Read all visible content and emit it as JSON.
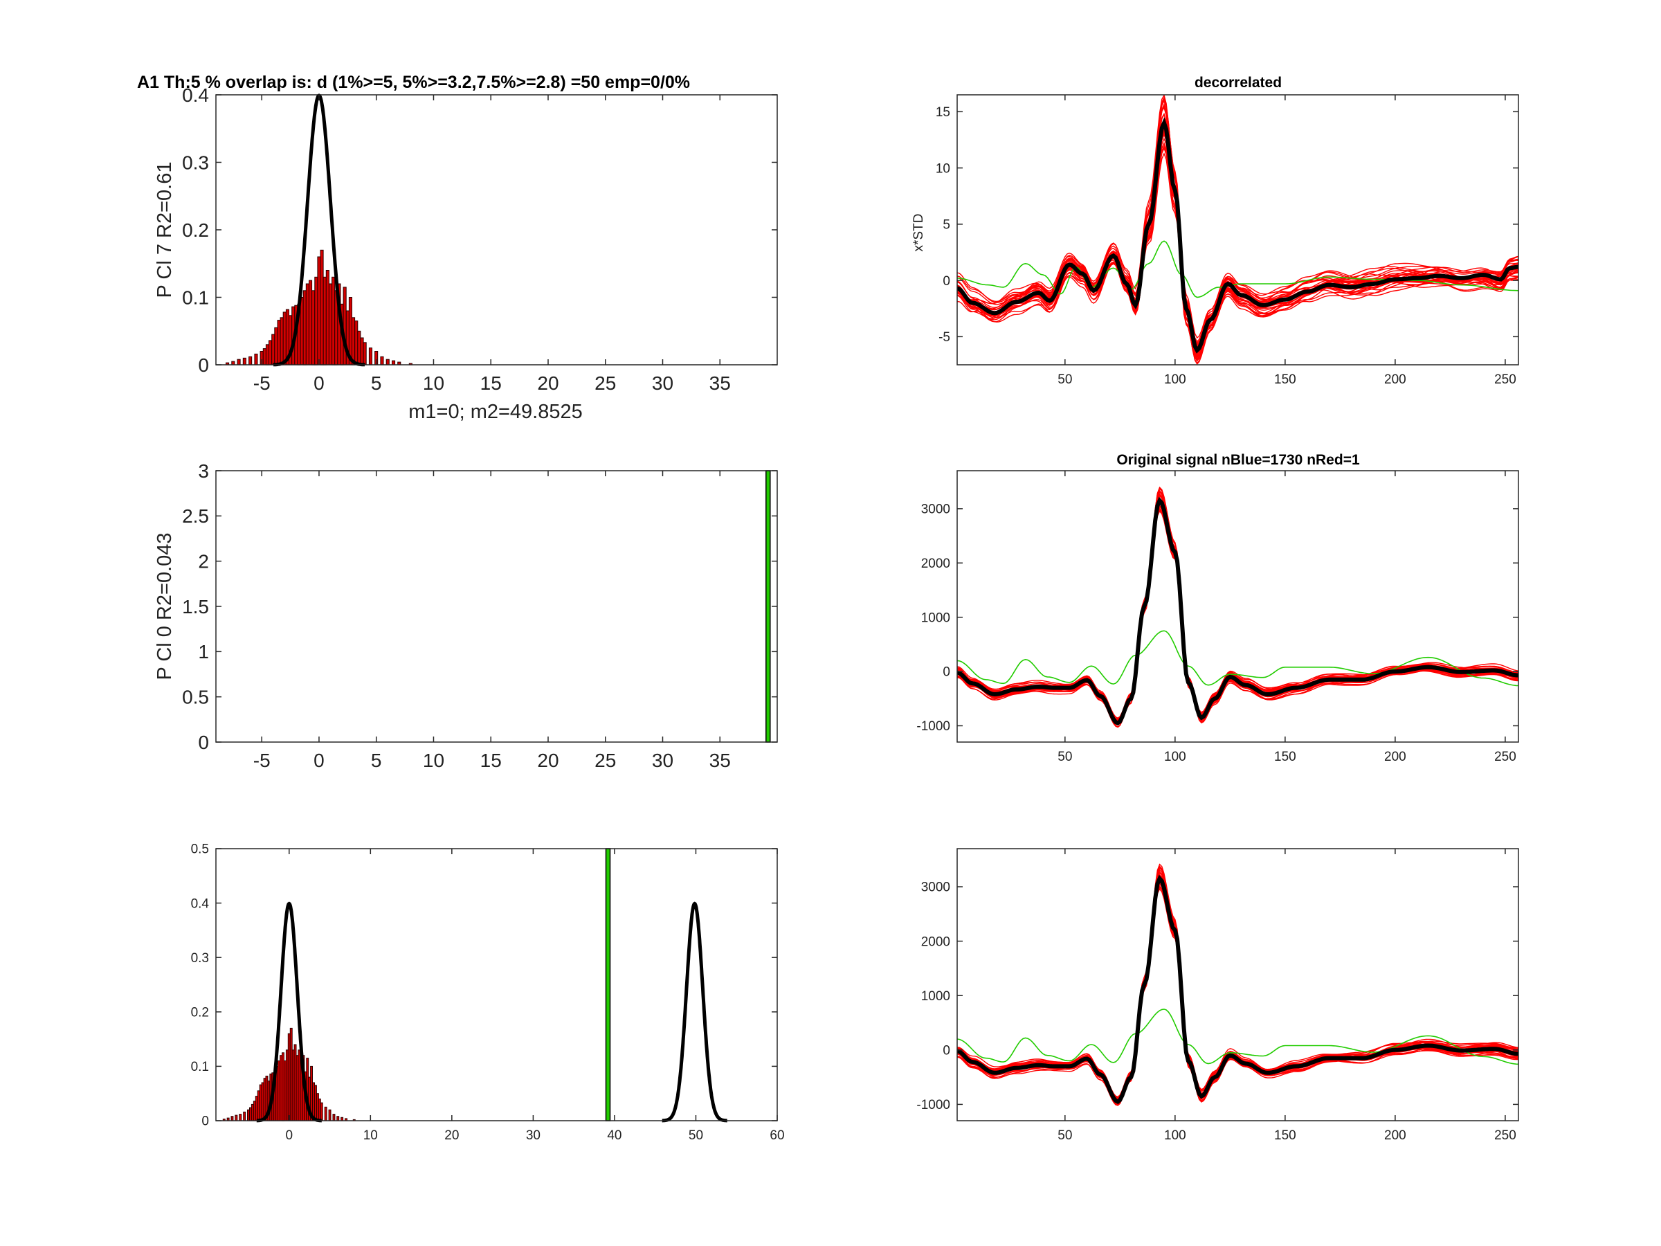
{
  "figure_title": "A1 Th:5 % overlap is: d (1%>=5, 5%>=3.2,7.5%>=2.8) =50 emp=0/0%",
  "colors": {
    "hist_fill": "#d40000",
    "hist_edge": "#2a0000",
    "curve": "#000000",
    "green": "#22cc00",
    "red_traces": "#ff0000",
    "mean_trace": "#000000"
  },
  "chart_data": [
    {
      "id": "hist-top",
      "type": "bar",
      "ylabel": "P Cl 7 R2=0.61",
      "xlabel": "m1=0; m2=49.8525",
      "xlim": [
        -9,
        40
      ],
      "ylim": [
        0,
        0.4
      ],
      "xticks": [
        -5,
        0,
        5,
        10,
        15,
        20,
        25,
        30,
        35
      ],
      "yticks": [
        0,
        0.1,
        0.2,
        0.3,
        0.4
      ],
      "gaussian": {
        "mu": 0,
        "sigma": 1
      },
      "hist_x": [
        -8,
        -7.5,
        -7,
        -6.5,
        -6,
        -5.5,
        -5,
        -4.75,
        -4.5,
        -4.25,
        -4,
        -3.75,
        -3.5,
        -3.25,
        -3,
        -2.75,
        -2.5,
        -2.25,
        -2,
        -1.75,
        -1.5,
        -1.25,
        -1,
        -0.75,
        -0.5,
        -0.25,
        0,
        0.25,
        0.5,
        0.75,
        1,
        1.25,
        1.5,
        1.75,
        2,
        2.25,
        2.5,
        2.75,
        3,
        3.25,
        3.5,
        3.75,
        4,
        4.5,
        5,
        5.5,
        6,
        6.5,
        7,
        8
      ],
      "hist_y": [
        0.003,
        0.005,
        0.008,
        0.01,
        0.012,
        0.016,
        0.02,
        0.024,
        0.03,
        0.036,
        0.045,
        0.055,
        0.066,
        0.07,
        0.078,
        0.082,
        0.073,
        0.086,
        0.088,
        0.09,
        0.1,
        0.11,
        0.12,
        0.125,
        0.11,
        0.13,
        0.16,
        0.17,
        0.13,
        0.14,
        0.12,
        0.13,
        0.11,
        0.12,
        0.09,
        0.115,
        0.08,
        0.1,
        0.07,
        0.065,
        0.05,
        0.04,
        0.033,
        0.025,
        0.02,
        0.012,
        0.008,
        0.006,
        0.004,
        0.002
      ]
    },
    {
      "id": "hist-middle",
      "type": "bar",
      "ylabel": "P Cl 0 R2=0.043",
      "xlim": [
        -9,
        40
      ],
      "ylim": [
        0,
        3
      ],
      "xticks": [
        -5,
        0,
        5,
        10,
        15,
        20,
        25,
        30,
        35
      ],
      "yticks": [
        0,
        0.5,
        1,
        1.5,
        2,
        2.5,
        3
      ],
      "green_bar_x": 39.2
    },
    {
      "id": "hist-bottom",
      "type": "bar",
      "xlim": [
        -9,
        60
      ],
      "ylim": [
        0,
        0.5
      ],
      "xticks": [
        0,
        10,
        20,
        30,
        40,
        50,
        60
      ],
      "yticks": [
        0,
        0.1,
        0.2,
        0.3,
        0.4,
        0.5
      ],
      "gaussians": [
        {
          "mu": 0,
          "sigma": 1
        },
        {
          "mu": 49.85,
          "sigma": 1
        }
      ],
      "green_bar_x": 39.2
    },
    {
      "id": "trace-decorrelated",
      "type": "line",
      "title": "decorrelated",
      "ylabel": "x*STD",
      "xlim": [
        1,
        256
      ],
      "ylim": [
        -7.5,
        16.5
      ],
      "xticks": [
        50,
        100,
        150,
        200,
        250
      ],
      "yticks": [
        -5,
        0,
        5,
        10,
        15
      ],
      "mean_knots": [
        [
          1,
          -0.7
        ],
        [
          8,
          -2
        ],
        [
          18,
          -2.9
        ],
        [
          28,
          -1.9
        ],
        [
          38,
          -1.1
        ],
        [
          43,
          -1.8
        ],
        [
          52,
          1.4
        ],
        [
          58,
          0.6
        ],
        [
          63,
          -0.9
        ],
        [
          72,
          2.2
        ],
        [
          78,
          -0.3
        ],
        [
          82,
          -2.2
        ],
        [
          88,
          5
        ],
        [
          95,
          14
        ],
        [
          100,
          8
        ],
        [
          105,
          -2.5
        ],
        [
          110,
          -6.2
        ],
        [
          116,
          -3.5
        ],
        [
          124,
          -0.3
        ],
        [
          130,
          -1.3
        ],
        [
          140,
          -2.2
        ],
        [
          150,
          -1.7
        ],
        [
          160,
          -1
        ],
        [
          170,
          -0.4
        ],
        [
          180,
          -0.6
        ],
        [
          190,
          -0.3
        ],
        [
          200,
          0.1
        ],
        [
          210,
          0.2
        ],
        [
          220,
          0.4
        ],
        [
          230,
          0.2
        ],
        [
          240,
          0.5
        ],
        [
          248,
          0.1
        ],
        [
          252,
          1.1
        ],
        [
          256,
          1.2
        ]
      ],
      "green_knots": [
        [
          1,
          0.2
        ],
        [
          15,
          -0.4
        ],
        [
          22,
          -0.6
        ],
        [
          32,
          1.5
        ],
        [
          40,
          0.5
        ],
        [
          48,
          -1.2
        ],
        [
          55,
          1.2
        ],
        [
          62,
          -0.6
        ],
        [
          72,
          1.1
        ],
        [
          80,
          -0.8
        ],
        [
          88,
          1.5
        ],
        [
          95,
          3.5
        ],
        [
          103,
          0.5
        ],
        [
          110,
          -1.5
        ],
        [
          120,
          -0.6
        ],
        [
          130,
          -0.3
        ],
        [
          150,
          -0.3
        ],
        [
          170,
          0.3
        ],
        [
          190,
          0.1
        ],
        [
          210,
          0
        ],
        [
          230,
          -0.4
        ],
        [
          256,
          -0.9
        ]
      ],
      "spread": [
        3.2,
        1.8
      ]
    },
    {
      "id": "trace-original",
      "type": "line",
      "title": "Original signal nBlue=1730 nRed=1",
      "xlim": [
        1,
        256
      ],
      "ylim": [
        -1300,
        3700
      ],
      "xticks": [
        50,
        100,
        150,
        200,
        250
      ],
      "yticks": [
        -1000,
        0,
        1000,
        2000,
        3000
      ],
      "mean_knots": [
        [
          1,
          -20
        ],
        [
          8,
          -220
        ],
        [
          18,
          -420
        ],
        [
          28,
          -330
        ],
        [
          38,
          -280
        ],
        [
          45,
          -300
        ],
        [
          52,
          -300
        ],
        [
          60,
          -160
        ],
        [
          66,
          -450
        ],
        [
          74,
          -950
        ],
        [
          80,
          -500
        ],
        [
          86,
          1200
        ],
        [
          93,
          3150
        ],
        [
          100,
          2200
        ],
        [
          106,
          -200
        ],
        [
          112,
          -850
        ],
        [
          118,
          -500
        ],
        [
          125,
          -100
        ],
        [
          132,
          -250
        ],
        [
          142,
          -420
        ],
        [
          155,
          -300
        ],
        [
          170,
          -150
        ],
        [
          185,
          -150
        ],
        [
          200,
          0
        ],
        [
          215,
          80
        ],
        [
          230,
          -10
        ],
        [
          245,
          20
        ],
        [
          256,
          -70
        ]
      ],
      "green_knots": [
        [
          1,
          200
        ],
        [
          14,
          -150
        ],
        [
          22,
          -220
        ],
        [
          32,
          220
        ],
        [
          42,
          -100
        ],
        [
          52,
          -200
        ],
        [
          62,
          100
        ],
        [
          72,
          -230
        ],
        [
          82,
          300
        ],
        [
          95,
          750
        ],
        [
          106,
          100
        ],
        [
          115,
          -250
        ],
        [
          125,
          -50
        ],
        [
          140,
          -110
        ],
        [
          150,
          80
        ],
        [
          170,
          80
        ],
        [
          190,
          -40
        ],
        [
          215,
          260
        ],
        [
          240,
          -120
        ],
        [
          256,
          -260
        ]
      ],
      "spread": [
        320,
        160
      ]
    },
    {
      "id": "trace-bottom",
      "type": "line",
      "xlim": [
        1,
        256
      ],
      "ylim": [
        -1300,
        3700
      ],
      "xticks": [
        50,
        100,
        150,
        200,
        250
      ],
      "yticks": [
        -1000,
        0,
        1000,
        2000,
        3000
      ],
      "mean_knots": [
        [
          1,
          -20
        ],
        [
          8,
          -220
        ],
        [
          18,
          -420
        ],
        [
          28,
          -330
        ],
        [
          38,
          -280
        ],
        [
          45,
          -300
        ],
        [
          52,
          -300
        ],
        [
          60,
          -160
        ],
        [
          66,
          -450
        ],
        [
          74,
          -950
        ],
        [
          80,
          -500
        ],
        [
          86,
          1200
        ],
        [
          93,
          3150
        ],
        [
          100,
          2200
        ],
        [
          106,
          -200
        ],
        [
          112,
          -850
        ],
        [
          118,
          -500
        ],
        [
          125,
          -100
        ],
        [
          132,
          -250
        ],
        [
          142,
          -420
        ],
        [
          155,
          -300
        ],
        [
          170,
          -150
        ],
        [
          185,
          -150
        ],
        [
          200,
          0
        ],
        [
          215,
          80
        ],
        [
          230,
          -10
        ],
        [
          245,
          20
        ],
        [
          256,
          -70
        ]
      ],
      "green_knots": [
        [
          1,
          200
        ],
        [
          14,
          -150
        ],
        [
          22,
          -220
        ],
        [
          32,
          220
        ],
        [
          42,
          -100
        ],
        [
          52,
          -200
        ],
        [
          62,
          100
        ],
        [
          72,
          -230
        ],
        [
          82,
          300
        ],
        [
          95,
          750
        ],
        [
          106,
          100
        ],
        [
          115,
          -250
        ],
        [
          125,
          -50
        ],
        [
          140,
          -110
        ],
        [
          150,
          80
        ],
        [
          170,
          80
        ],
        [
          190,
          -40
        ],
        [
          215,
          260
        ],
        [
          240,
          -120
        ],
        [
          256,
          -260
        ]
      ],
      "spread": [
        320,
        160
      ]
    }
  ]
}
